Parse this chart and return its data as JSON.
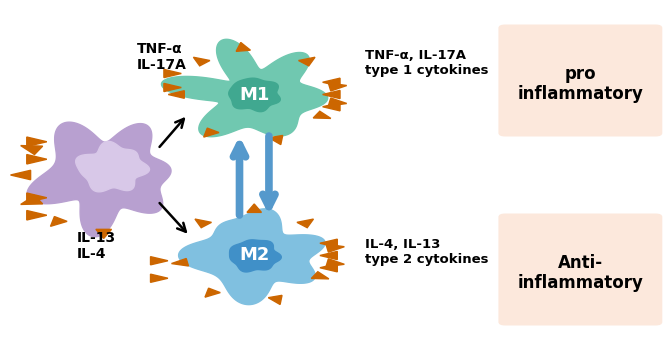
{
  "bg_color": "#ffffff",
  "macrophage_color": "#b8a0d0",
  "macrophage_nucleus_color": "#d8c8e8",
  "m1_cell_color": "#70c8b0",
  "m1_nucleus_color": "#40a890",
  "m2_cell_color": "#80c0e0",
  "m2_nucleus_color": "#4090c8",
  "arrow_color": "#5599cc",
  "spike_color": "#cc6600",
  "pro_box_color": "#fce8dc",
  "anti_box_color": "#fce8dc",
  "text_color": "#000000",
  "tnf_label": "TNF-α\nIL-17A",
  "il13_label": "IL-13\nIL-4",
  "m1_right_label": "TNF-α, IL-17A\ntype 1 cytokines",
  "m2_right_label": "IL-4, IL-13\ntype 2 cytokines",
  "pro_label": "pro\ninflammatory",
  "anti_label": "Anti-\ninflammatory",
  "m1_text": "M1",
  "m2_text": "M2",
  "figw": 6.69,
  "figh": 3.5,
  "dpi": 100
}
